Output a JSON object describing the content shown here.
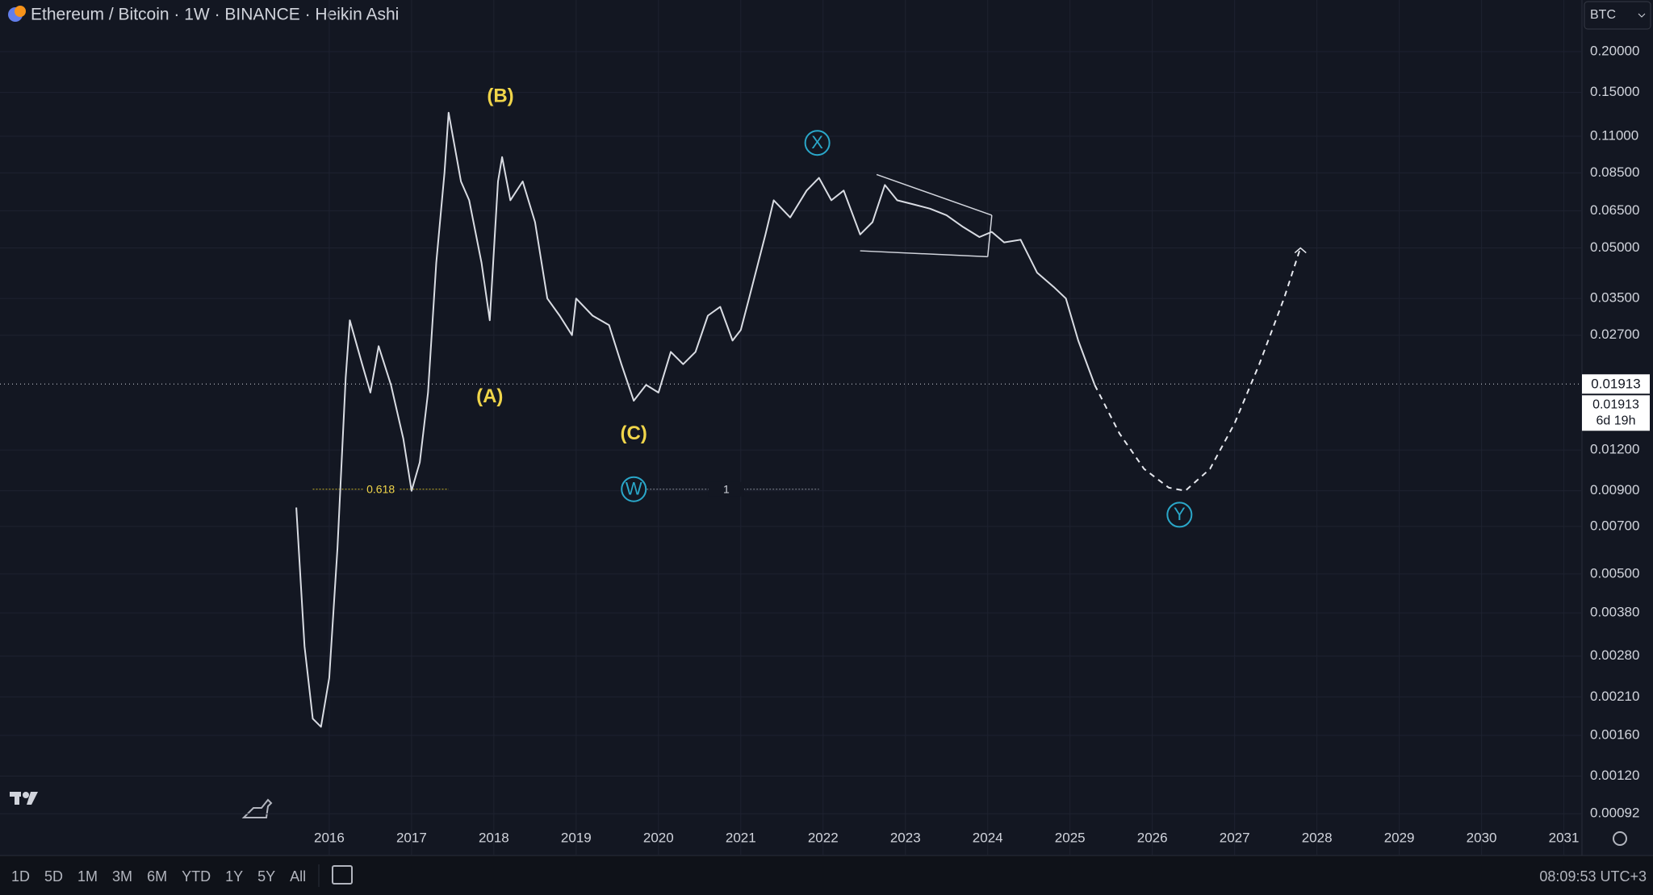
{
  "chart_data": {
    "type": "line",
    "title": "Ethereum / Bitcoin · 1W · BINANCE · Heikin Ashi",
    "currency": "BTC",
    "log_scale": true,
    "grid": true,
    "color": "#d9dce3",
    "x": [
      2015.6,
      2015.7,
      2015.8,
      2015.9,
      2016.0,
      2016.1,
      2016.2,
      2016.25,
      2016.4,
      2016.5,
      2016.6,
      2016.75,
      2016.9,
      2017.0,
      2017.1,
      2017.2,
      2017.3,
      2017.4,
      2017.45,
      2017.6,
      2017.7,
      2017.85,
      2017.95,
      2018.05,
      2018.1,
      2018.2,
      2018.35,
      2018.5,
      2018.65,
      2018.8,
      2018.95,
      2019.0,
      2019.2,
      2019.4,
      2019.55,
      2019.7,
      2019.85,
      2020.0,
      2020.15,
      2020.3,
      2020.45,
      2020.6,
      2020.75,
      2020.9,
      2021.0,
      2021.1,
      2021.3,
      2021.4,
      2021.6,
      2021.8,
      2021.95,
      2022.1,
      2022.25,
      2022.45,
      2022.6,
      2022.75,
      2022.9,
      2023.1,
      2023.3,
      2023.5,
      2023.7,
      2023.9,
      2024.05,
      2024.2,
      2024.4,
      2024.6,
      2024.8,
      2024.95,
      2025.1,
      2025.3
    ],
    "values": [
      0.008,
      0.003,
      0.0018,
      0.0017,
      0.0024,
      0.006,
      0.02,
      0.03,
      0.022,
      0.018,
      0.025,
      0.019,
      0.013,
      0.009,
      0.011,
      0.018,
      0.045,
      0.085,
      0.13,
      0.08,
      0.07,
      0.045,
      0.03,
      0.08,
      0.095,
      0.07,
      0.08,
      0.06,
      0.035,
      0.031,
      0.027,
      0.035,
      0.031,
      0.029,
      0.022,
      0.017,
      0.019,
      0.018,
      0.024,
      0.022,
      0.024,
      0.031,
      0.033,
      0.026,
      0.028,
      0.035,
      0.055,
      0.07,
      0.062,
      0.075,
      0.082,
      0.07,
      0.075,
      0.055,
      0.06,
      0.078,
      0.07,
      0.068,
      0.066,
      0.063,
      0.058,
      0.054,
      0.056,
      0.052,
      0.053,
      0.042,
      0.038,
      0.035,
      0.026,
      0.019
    ],
    "xlim": [
      2012,
      2031.22
    ],
    "xticks": [
      2016,
      2017,
      2018,
      2019,
      2020,
      2021,
      2022,
      2023,
      2024,
      2025,
      2026,
      2027,
      2028,
      2029,
      2030,
      2031
    ],
    "ylim": [
      0.000689,
      0.288
    ],
    "yticks": [
      {
        "value": 0.2,
        "label": "0.20000"
      },
      {
        "value": 0.15,
        "label": "0.15000"
      },
      {
        "value": 0.11,
        "label": "0.11000"
      },
      {
        "value": 0.085,
        "label": "0.08500"
      },
      {
        "value": 0.065,
        "label": "0.06500"
      },
      {
        "value": 0.05,
        "label": "0.05000"
      },
      {
        "value": 0.035,
        "label": "0.03500"
      },
      {
        "value": 0.027,
        "label": "0.02700"
      },
      {
        "value": 0.012,
        "label": "0.01200"
      },
      {
        "value": 0.009,
        "label": "0.00900"
      },
      {
        "value": 0.007,
        "label": "0.00700"
      },
      {
        "value": 0.005,
        "label": "0.00500"
      },
      {
        "value": 0.0038,
        "label": "0.00380"
      },
      {
        "value": 0.0028,
        "label": "0.00280"
      },
      {
        "value": 0.0021,
        "label": "0.00210"
      },
      {
        "value": 0.0016,
        "label": "0.00160"
      },
      {
        "value": 0.0012,
        "label": "0.00120"
      },
      {
        "value": 0.00092,
        "label": "0.00092"
      }
    ],
    "last_price": 0.01913,
    "countdown": "6d 19h",
    "projection": {
      "color": "#e6e8ee",
      "x": [
        2025.3,
        2025.6,
        2025.9,
        2026.2,
        2026.4,
        2026.7,
        2027.0,
        2027.3,
        2027.6,
        2027.8
      ],
      "values": [
        0.019,
        0.0135,
        0.0105,
        0.0092,
        0.009,
        0.0105,
        0.0145,
        0.022,
        0.035,
        0.05
      ]
    },
    "trendlines": [
      {
        "x": [
          2022.65,
          2024.05
        ],
        "values": [
          0.084,
          0.063
        ]
      },
      {
        "x": [
          2022.45,
          2024.0
        ],
        "values": [
          0.049,
          0.047
        ]
      },
      {
        "x": [
          2024.0,
          2024.05
        ],
        "values": [
          0.047,
          0.063
        ]
      }
    ],
    "fib_levels": [
      {
        "label": "0.618",
        "value": 0.0091,
        "x": [
          2015.8,
          2017.45
        ],
        "color": "#c9b52b"
      },
      {
        "label": "1",
        "value": 0.0091,
        "x": [
          2019.7,
          2021.95
        ],
        "color": "#8a8f9c"
      }
    ],
    "annotations": [
      {
        "text": "(B)",
        "x": 2018.08,
        "y": 0.146,
        "color": "#f0d54a",
        "style": "plain"
      },
      {
        "text": "(A)",
        "x": 2017.95,
        "y": 0.0175,
        "color": "#f0d54a",
        "style": "plain"
      },
      {
        "text": "(C)",
        "x": 2019.7,
        "y": 0.0135,
        "color": "#f0d54a",
        "style": "plain"
      },
      {
        "text": "X",
        "x": 2021.93,
        "y": 0.105,
        "color": "#2aa7c9",
        "style": "circle"
      },
      {
        "text": "W",
        "x": 2019.7,
        "y": 0.0091,
        "color": "#2aa7c9",
        "style": "circle"
      },
      {
        "text": "Y",
        "x": 2026.33,
        "y": 0.0076,
        "color": "#2aa7c9",
        "style": "circle"
      }
    ],
    "ranges": [
      "1D",
      "5D",
      "1M",
      "3M",
      "6M",
      "YTD",
      "1Y",
      "5Y",
      "All"
    ],
    "clock": "08:09:53 UTC+3"
  }
}
